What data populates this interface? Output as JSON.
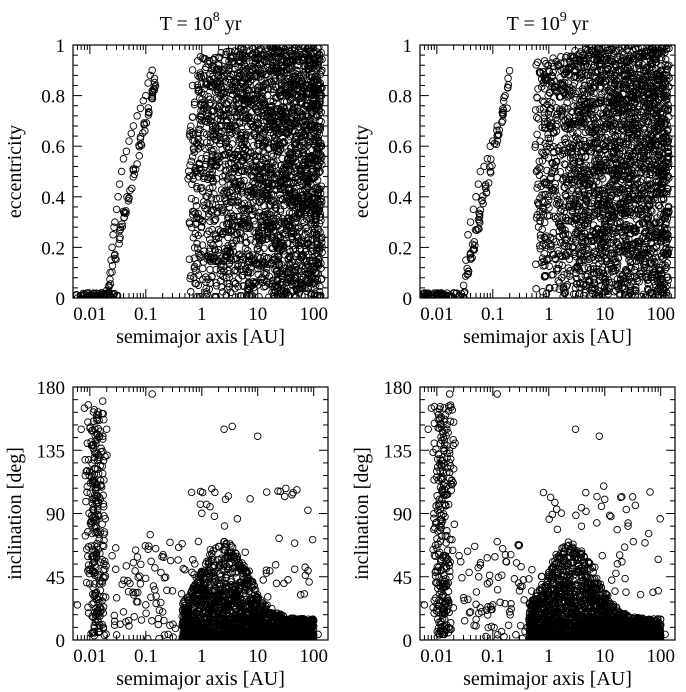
{
  "chart_data": [
    {
      "type": "scatter",
      "title": "T = 10",
      "title_exp": "8",
      "title_unit": " yr",
      "xlabel": "semimajor axis  [AU]",
      "ylabel": "eccentricity",
      "xscale": "log",
      "xlim": [
        0.005,
        180
      ],
      "ylim": [
        0,
        1
      ],
      "x_ticklabels": [
        "0.01",
        "0.1",
        "1",
        "10",
        "100"
      ],
      "x_ticks": [
        0.01,
        0.1,
        1,
        10,
        100
      ],
      "y_ticklabels": [
        "0",
        "0.2",
        "0.4",
        "0.6",
        "0.8",
        "1"
      ],
      "y_ticks": [
        0,
        0.2,
        0.4,
        0.6,
        0.8,
        1
      ],
      "marker": "open-circle",
      "grid": false,
      "series": [
        {
          "x": [
            0.006,
            0.007,
            0.008,
            0.009,
            0.01,
            0.012,
            0.014,
            0.016,
            0.018,
            0.02,
            0.022,
            0.023,
            0.024,
            0.025,
            0.026,
            0.027,
            0.028,
            0.03,
            0.032,
            0.034,
            0.037,
            0.04,
            0.045,
            0.05,
            0.055,
            0.06,
            0.07,
            0.08,
            0.09,
            0.1,
            0.11,
            0.12,
            0.13,
            0.6,
            0.8,
            1.0,
            1.5,
            2,
            3,
            5,
            8,
            10,
            15,
            20,
            30,
            50,
            70,
            100,
            140
          ],
          "y": [
            0.0,
            0.01,
            0.0,
            0.02,
            0.01,
            0.0,
            0.01,
            0.02,
            0.0,
            0.03,
            0.05,
            0.1,
            0.15,
            0.2,
            0.25,
            0.28,
            0.3,
            0.35,
            0.4,
            0.45,
            0.5,
            0.55,
            0.58,
            0.62,
            0.65,
            0.68,
            0.72,
            0.75,
            0.78,
            0.8,
            0.85,
            0.88,
            0.9,
            0.3,
            0.5,
            0.7,
            0.9,
            0.95,
            0.9,
            0.85,
            0.9,
            0.95,
            0.8,
            0.9,
            0.85,
            0.9,
            0.95,
            0.92,
            0.9
          ]
        }
      ]
    },
    {
      "type": "scatter",
      "title": "T = 10",
      "title_exp": "9",
      "title_unit": " yr",
      "xlabel": "semimajor axis  [AU]",
      "ylabel": "eccentricity",
      "xscale": "log",
      "xlim": [
        0.005,
        180
      ],
      "ylim": [
        0,
        1
      ],
      "x_ticklabels": [
        "0.01",
        "0.1",
        "1",
        "10",
        "100"
      ],
      "x_ticks": [
        0.01,
        0.1,
        1,
        10,
        100
      ],
      "y_ticklabels": [
        "0",
        "0.2",
        "0.4",
        "0.6",
        "0.8",
        "1"
      ],
      "y_ticks": [
        0,
        0.2,
        0.4,
        0.6,
        0.8,
        1
      ],
      "marker": "open-circle",
      "grid": false,
      "series": [
        {
          "x": [
            0.006,
            0.008,
            0.01,
            0.012,
            0.015,
            0.018,
            0.02,
            0.025,
            0.03,
            0.033,
            0.036,
            0.04,
            0.045,
            0.05,
            0.055,
            0.06,
            0.07,
            0.08,
            0.09,
            0.1,
            0.12,
            0.15,
            0.18,
            0.6,
            0.8,
            1.0,
            1.5,
            2,
            3,
            5,
            8,
            10,
            15,
            20,
            30,
            50,
            70,
            100,
            140
          ],
          "y": [
            0.0,
            0.01,
            0.0,
            0.02,
            0.01,
            0.0,
            0.02,
            0.01,
            0.05,
            0.15,
            0.25,
            0.3,
            0.35,
            0.4,
            0.45,
            0.5,
            0.52,
            0.55,
            0.6,
            0.62,
            0.68,
            0.7,
            0.75,
            0.5,
            0.85,
            0.9,
            0.92,
            0.95,
            0.9,
            0.88,
            0.92,
            0.95,
            0.85,
            0.9,
            0.88,
            0.9,
            0.93,
            0.9,
            0.92
          ]
        }
      ]
    },
    {
      "type": "scatter",
      "title": "",
      "xlabel": "semimajor axis  [AU]",
      "ylabel": "inclination  [deg]",
      "xscale": "log",
      "xlim": [
        0.005,
        180
      ],
      "ylim": [
        0,
        180
      ],
      "x_ticklabels": [
        "0.01",
        "0.1",
        "1",
        "10",
        "100"
      ],
      "x_ticks": [
        0.01,
        0.1,
        1,
        10,
        100
      ],
      "y_ticklabels": [
        "0",
        "45",
        "90",
        "135",
        "180"
      ],
      "y_ticks": [
        0,
        45,
        90,
        135,
        180
      ],
      "marker": "open-circle",
      "grid": false,
      "series": [
        {
          "x": [
            0.006,
            0.007,
            0.008,
            0.009,
            0.01,
            0.011,
            0.012,
            0.013,
            0.015,
            0.017,
            0.02,
            0.025,
            0.03,
            0.04,
            0.05,
            0.06,
            0.08,
            0.1,
            0.12,
            0.15,
            0.2,
            0.3,
            0.5,
            0.7,
            1,
            1.5,
            2,
            3,
            4,
            5,
            7,
            10,
            15,
            20,
            30,
            50,
            70,
            100,
            120,
            0.13,
            2.5,
            3.5,
            10
          ],
          "y": [
            25,
            150,
            165,
            140,
            120,
            100,
            80,
            60,
            40,
            170,
            150,
            60,
            30,
            20,
            10,
            55,
            40,
            25,
            75,
            65,
            20,
            35,
            50,
            30,
            25,
            20,
            15,
            10,
            5,
            15,
            10,
            12,
            8,
            10,
            6,
            5,
            8,
            3,
            4,
            175,
            150,
            152,
            145
          ]
        }
      ]
    },
    {
      "type": "scatter",
      "title": "",
      "xlabel": "semimajor axis  [AU]",
      "ylabel": "inclination  [deg]",
      "xscale": "log",
      "xlim": [
        0.005,
        180
      ],
      "ylim": [
        0,
        180
      ],
      "x_ticklabels": [
        "0.01",
        "0.1",
        "1",
        "10",
        "100"
      ],
      "x_ticks": [
        0.01,
        0.1,
        1,
        10,
        100
      ],
      "y_ticklabels": [
        "0",
        "45",
        "90",
        "135",
        "180"
      ],
      "y_ticks": [
        0,
        45,
        90,
        135,
        180
      ],
      "marker": "open-circle",
      "grid": false,
      "series": [
        {
          "x": [
            0.006,
            0.007,
            0.008,
            0.009,
            0.01,
            0.011,
            0.012,
            0.013,
            0.015,
            0.017,
            0.02,
            0.025,
            0.03,
            0.04,
            0.05,
            0.06,
            0.08,
            0.1,
            0.12,
            0.15,
            0.2,
            0.3,
            0.5,
            0.7,
            1,
            1.5,
            2,
            3,
            4,
            5,
            7,
            10,
            15,
            20,
            30,
            50,
            70,
            100,
            120,
            0.12,
            3,
            8,
            10
          ],
          "y": [
            25,
            150,
            165,
            140,
            120,
            100,
            80,
            60,
            40,
            175,
            155,
            60,
            30,
            20,
            10,
            55,
            40,
            25,
            70,
            65,
            20,
            35,
            50,
            30,
            25,
            20,
            15,
            10,
            5,
            15,
            10,
            12,
            8,
            10,
            6,
            5,
            8,
            3,
            4,
            175,
            150,
            145,
            100
          ]
        }
      ]
    }
  ]
}
